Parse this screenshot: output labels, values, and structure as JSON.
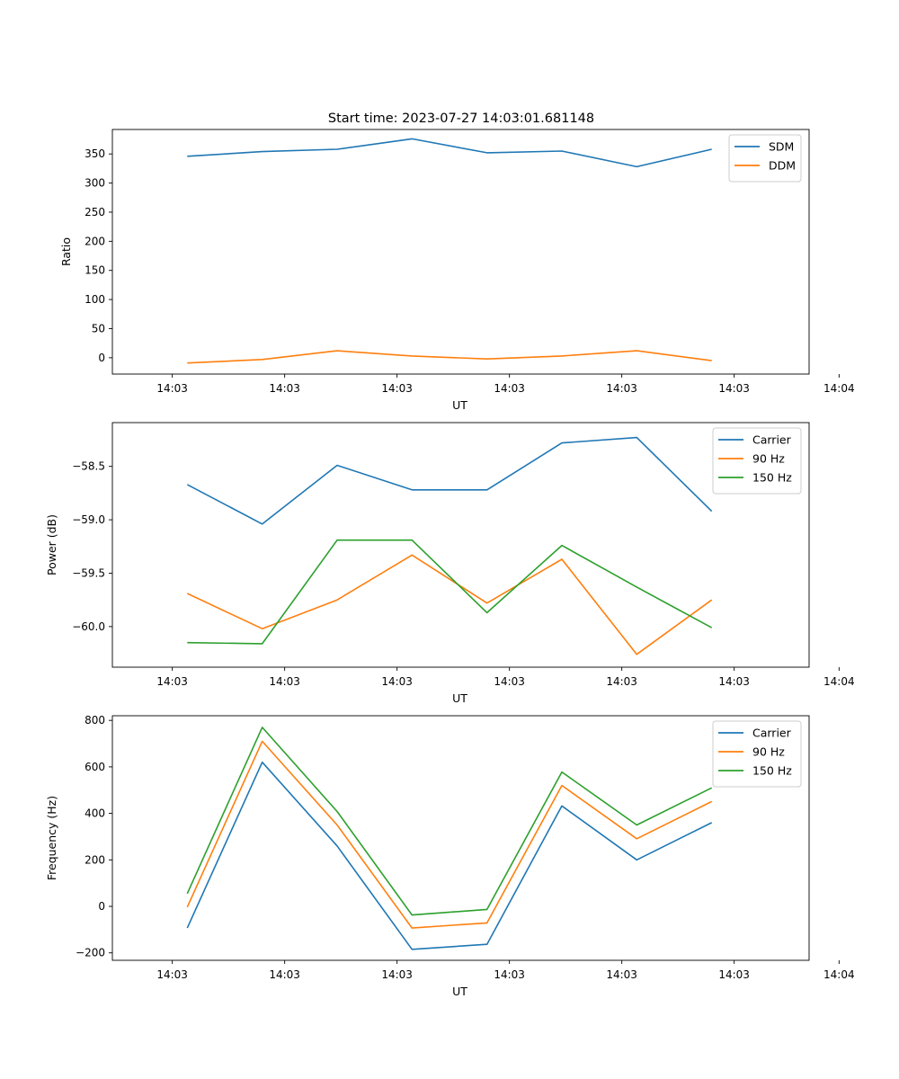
{
  "figure": {
    "title": "Start time: 2023-07-27 14:03:01.681148"
  },
  "colors": {
    "blue": "#1f77b4",
    "orange": "#ff7f0e",
    "green": "#2ca02c"
  },
  "chart_data": [
    {
      "type": "line",
      "title": "Start time: 2023-07-27 14:03:01.681148",
      "xlabel": "UT",
      "ylabel": "Ratio",
      "x_ticks": [
        "14:03",
        "14:03",
        "14:03",
        "14:03",
        "14:03",
        "14:03",
        "14:04"
      ],
      "xlim": [
        -1,
        8.3
      ],
      "x": [
        0,
        1,
        2,
        3,
        4,
        5,
        6,
        7
      ],
      "ylim": [
        -28,
        392
      ],
      "y_ticks": [
        0,
        50,
        100,
        150,
        200,
        250,
        300,
        350
      ],
      "y_tick_labels": [
        "0",
        "50",
        "100",
        "150",
        "200",
        "250",
        "300",
        "350"
      ],
      "legend": "top-right",
      "series": [
        {
          "name": "SDM",
          "color": "#1f77b4",
          "values": [
            346,
            354,
            358,
            376,
            352,
            355,
            328,
            358
          ]
        },
        {
          "name": "DDM",
          "color": "#ff7f0e",
          "values": [
            -9,
            -3,
            12,
            3,
            -2,
            3,
            12,
            -5
          ]
        }
      ]
    },
    {
      "type": "line",
      "title": "",
      "xlabel": "UT",
      "ylabel": "Power (dB)",
      "x_ticks": [
        "14:03",
        "14:03",
        "14:03",
        "14:03",
        "14:03",
        "14:03",
        "14:04"
      ],
      "xlim": [
        -1,
        8.3
      ],
      "x": [
        0,
        1,
        2,
        3,
        4,
        5,
        6,
        7
      ],
      "ylim": [
        -60.38,
        -58.09
      ],
      "y_ticks": [
        -58.5,
        -59.0,
        -59.5,
        -60.0
      ],
      "y_tick_labels": [
        "−58.5",
        "−59.0",
        "−59.5",
        "−60.0"
      ],
      "legend": "top-right",
      "series": [
        {
          "name": "Carrier",
          "color": "#1f77b4",
          "values": [
            -58.67,
            -59.04,
            -58.49,
            -58.72,
            -58.72,
            -58.28,
            -58.23,
            -58.92
          ]
        },
        {
          "name": "90 Hz",
          "color": "#ff7f0e",
          "values": [
            -59.69,
            -60.02,
            -59.75,
            -59.33,
            -59.78,
            -59.37,
            -60.26,
            -59.75
          ]
        },
        {
          "name": "150 Hz",
          "color": "#2ca02c",
          "values": [
            -60.15,
            -60.16,
            -59.19,
            -59.19,
            -59.87,
            -59.24,
            -59.63,
            -60.01
          ]
        }
      ]
    },
    {
      "type": "line",
      "title": "",
      "xlabel": "UT",
      "ylabel": "Frequency (Hz)",
      "x_ticks": [
        "14:03",
        "14:03",
        "14:03",
        "14:03",
        "14:03",
        "14:03",
        "14:04"
      ],
      "xlim": [
        -1,
        8.3
      ],
      "x": [
        0,
        1,
        2,
        3,
        4,
        5,
        6,
        7
      ],
      "ylim": [
        -232,
        820
      ],
      "y_ticks": [
        -200,
        0,
        200,
        400,
        600,
        800
      ],
      "y_tick_labels": [
        "−200",
        "0",
        "200",
        "400",
        "600",
        "800"
      ],
      "legend": "top-right",
      "series": [
        {
          "name": "Carrier",
          "color": "#1f77b4",
          "values": [
            -93,
            620,
            260,
            -185,
            -163,
            432,
            200,
            360
          ]
        },
        {
          "name": "90 Hz",
          "color": "#ff7f0e",
          "values": [
            -3,
            710,
            350,
            -93,
            -71,
            520,
            291,
            451
          ]
        },
        {
          "name": "150 Hz",
          "color": "#2ca02c",
          "values": [
            55,
            770,
            408,
            -37,
            -13,
            578,
            350,
            510
          ]
        }
      ]
    }
  ]
}
